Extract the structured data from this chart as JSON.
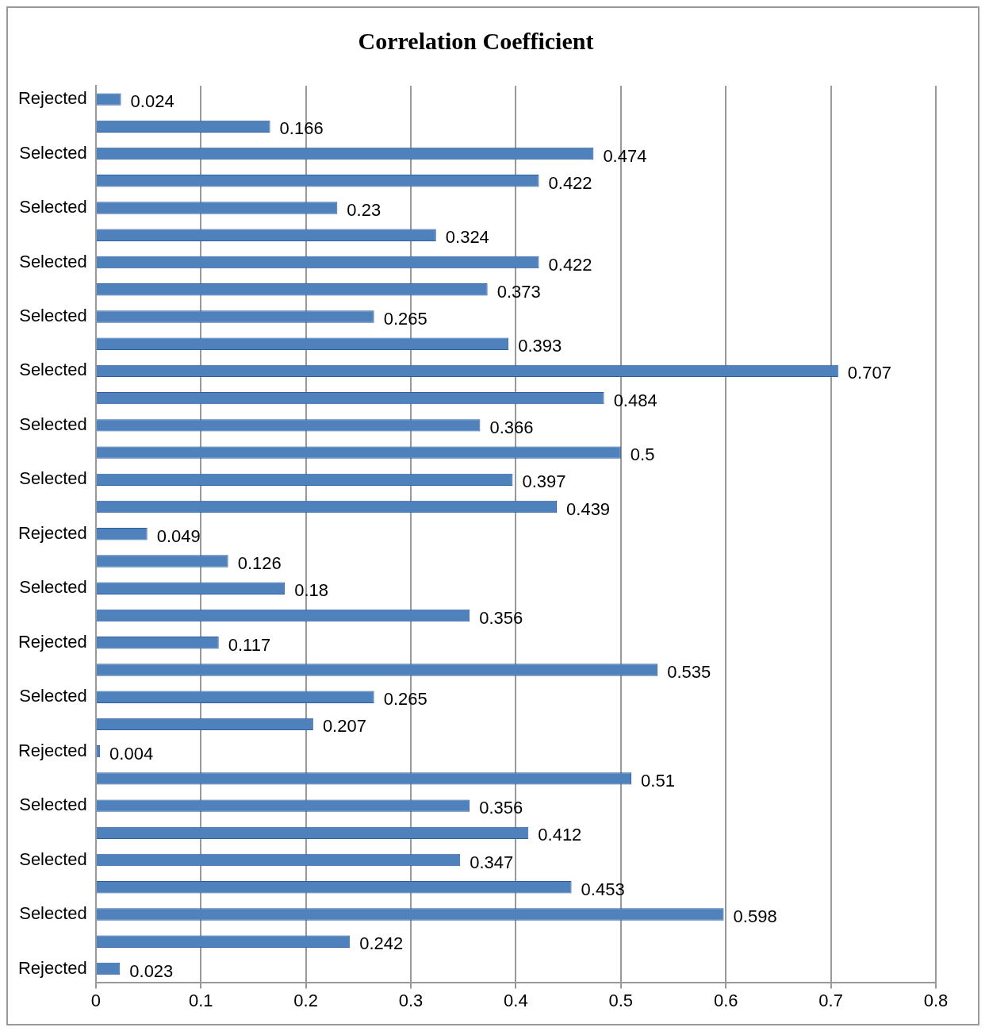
{
  "chart_data": {
    "type": "bar",
    "orientation": "horizontal",
    "title": "Correlation Coefficient",
    "categories": [
      "Rejected",
      null,
      "Selected",
      null,
      "Selected",
      null,
      "Selected",
      null,
      "Selected",
      null,
      "Selected",
      null,
      "Selected",
      null,
      "Selected",
      null,
      "Rejected",
      null,
      "Selected",
      null,
      "Rejected",
      null,
      "Selected",
      null,
      "Rejected",
      null,
      "Selected",
      null,
      "Selected",
      null,
      "Selected",
      null,
      "Rejected"
    ],
    "values": [
      0.024,
      0.166,
      0.474,
      0.422,
      0.23,
      0.324,
      0.422,
      0.373,
      0.265,
      0.393,
      0.707,
      0.484,
      0.366,
      0.5,
      0.397,
      0.439,
      0.049,
      0.126,
      0.18,
      0.356,
      0.117,
      0.535,
      0.265,
      0.207,
      0.004,
      0.51,
      0.356,
      0.412,
      0.347,
      0.453,
      0.598,
      0.242,
      0.023
    ],
    "color": "#4f81bd",
    "xlim": [
      0,
      0.8
    ],
    "xticks": [
      0,
      0.1,
      0.2,
      0.3,
      0.4,
      0.5,
      0.6,
      0.7,
      0.8
    ],
    "grid": "x",
    "data_labels": true,
    "legend": false
  }
}
